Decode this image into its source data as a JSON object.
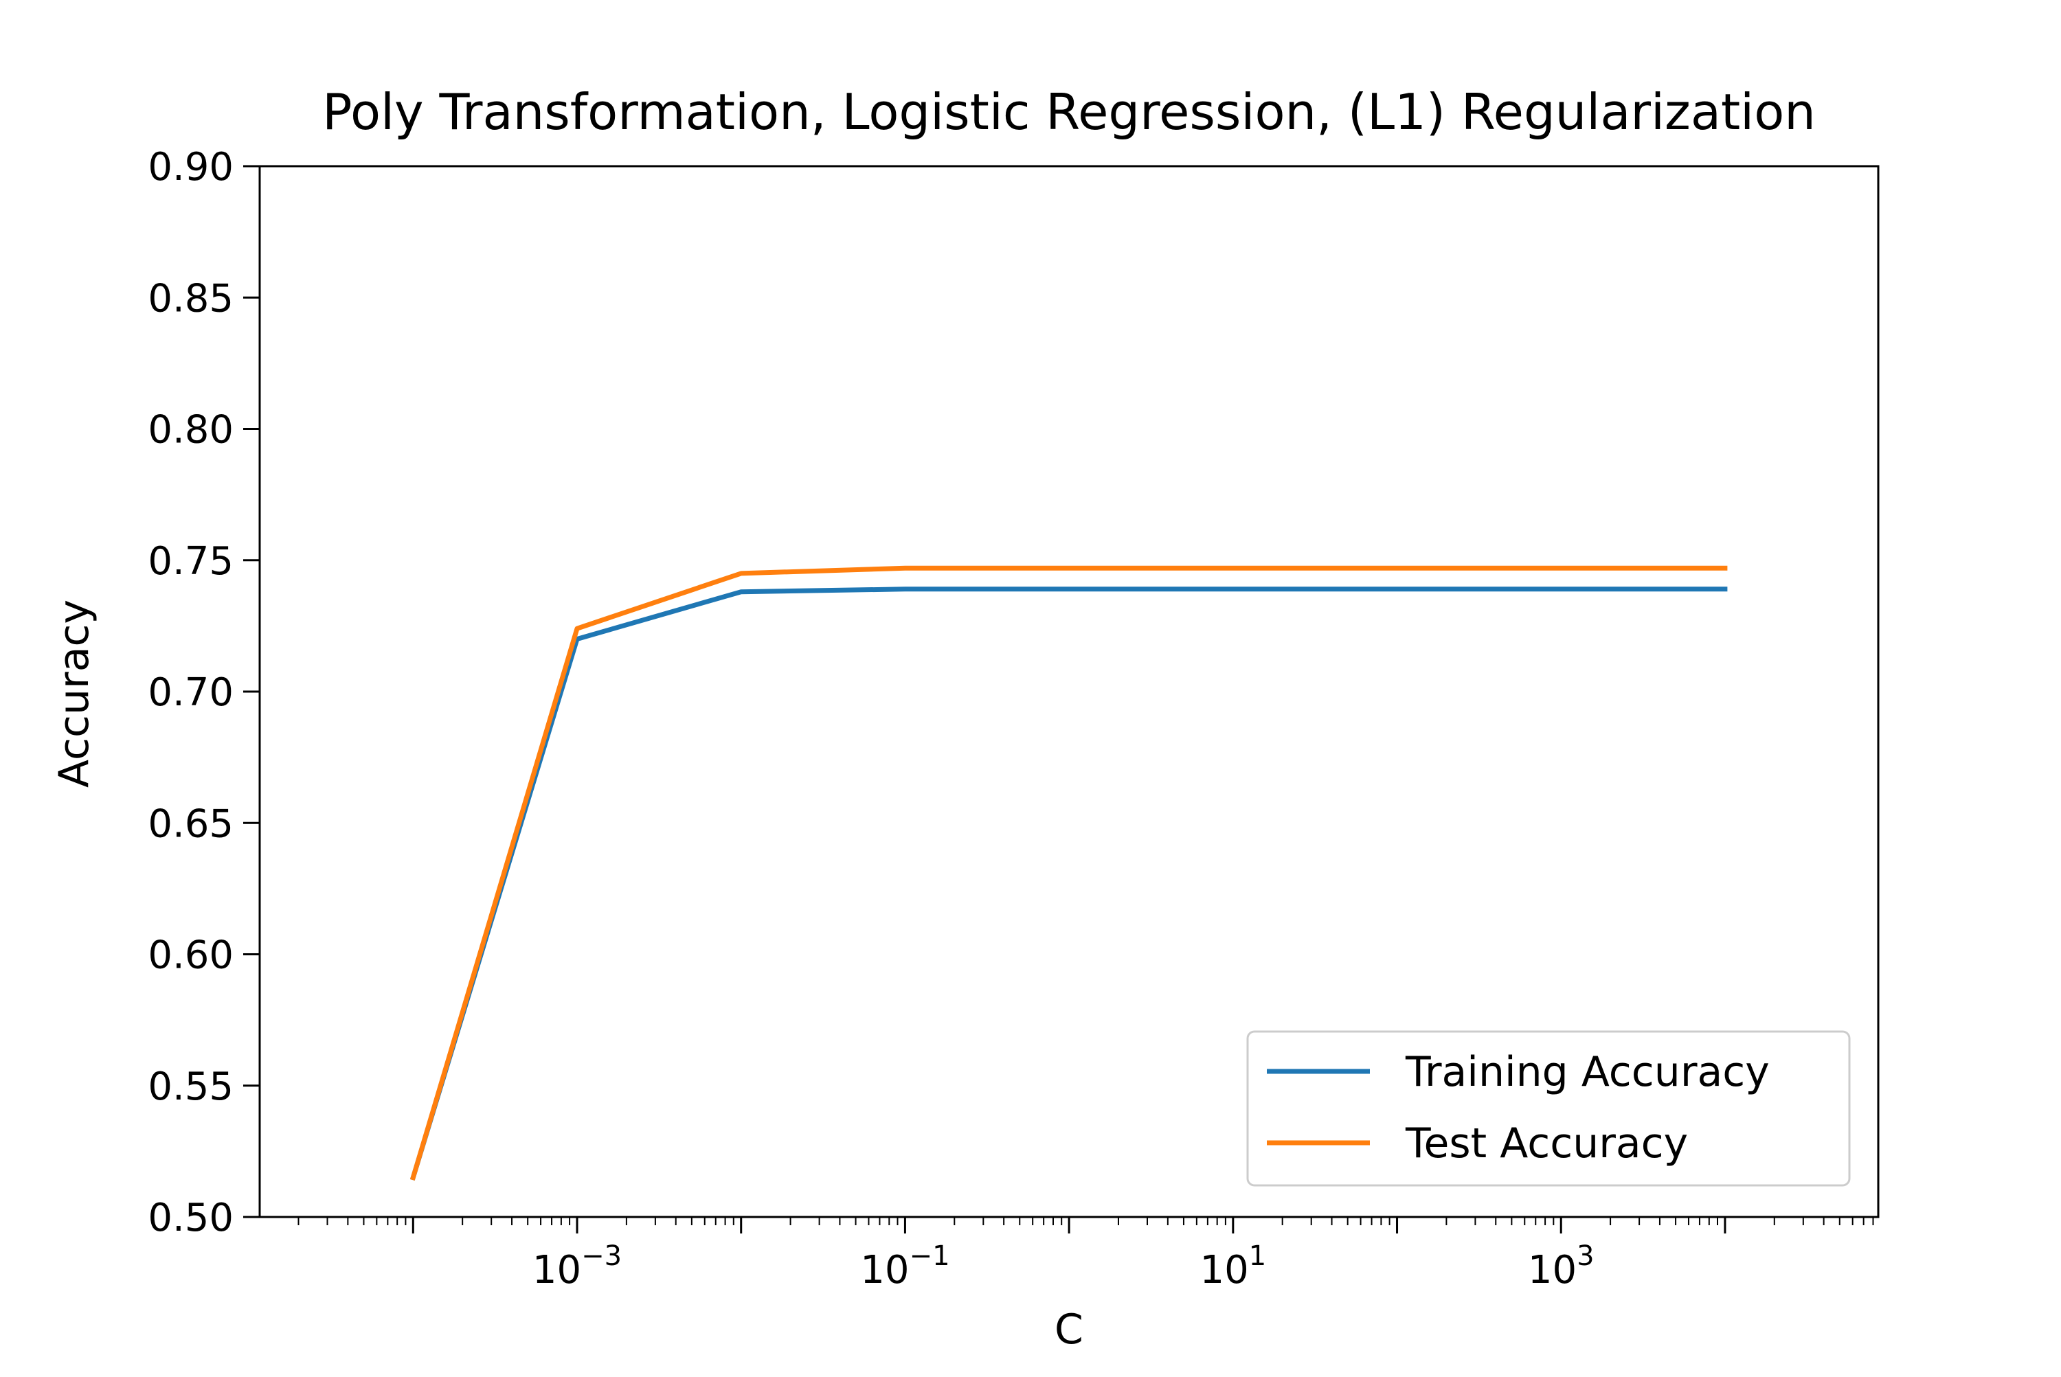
{
  "chart_data": {
    "type": "line",
    "title": "Poly Transformation, Logistic Regression, (L1) Regularization",
    "xlabel": "C",
    "ylabel": "Accuracy",
    "x_scale": "log",
    "x": [
      0.0001,
      0.001,
      0.01,
      0.1,
      1,
      10,
      100,
      1000,
      10000
    ],
    "xlim": [
      1.16e-05,
      86000
    ],
    "ylim": [
      0.5,
      0.9
    ],
    "yticks": [
      "0.50",
      "0.55",
      "0.60",
      "0.65",
      "0.70",
      "0.75",
      "0.80",
      "0.85",
      "0.90"
    ],
    "xticks": [
      {
        "value": 0.001,
        "base": "10",
        "exp": "−3"
      },
      {
        "value": 0.1,
        "base": "10",
        "exp": "−1"
      },
      {
        "value": 10,
        "base": "10",
        "exp": "1"
      },
      {
        "value": 1000,
        "base": "10",
        "exp": "3"
      }
    ],
    "series": [
      {
        "name": "Training Accuracy",
        "color": "#1f77b4",
        "values": [
          0.515,
          0.72,
          0.738,
          0.739,
          0.739,
          0.739,
          0.739,
          0.739,
          0.739
        ]
      },
      {
        "name": "Test Accuracy",
        "color": "#ff7f0e",
        "values": [
          0.515,
          0.724,
          0.745,
          0.747,
          0.747,
          0.747,
          0.747,
          0.747,
          0.747
        ]
      }
    ],
    "legend_position": "lower-right",
    "grid": false
  }
}
